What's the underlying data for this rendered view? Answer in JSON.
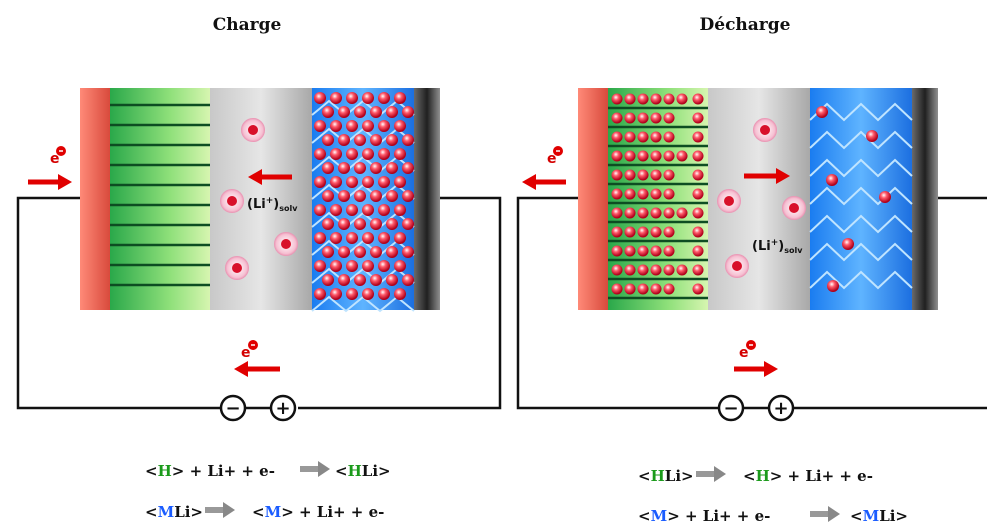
{
  "panels": {
    "charge": {
      "title": "Charge",
      "electron": "e",
      "ion_label": "(Li",
      "ion_sup": "+",
      "ion_paren": ")",
      "ion_sub": "solv",
      "minus": "−",
      "plus": "+",
      "eq1": {
        "a_open": "<",
        "a_H": "H",
        "a_close": ">",
        "a_rest": " + Li+ + e-",
        "b_open": "<",
        "b_H": "H",
        "b_Li": "Li>"
      },
      "eq2": {
        "a_open": "<",
        "a_M": "M",
        "a_close": "Li>",
        "b_open": "<",
        "b_M": "M",
        "b_rest": "> + Li+ + e-"
      }
    },
    "discharge": {
      "title": "Décharge",
      "electron": "e",
      "ion_label": "(Li",
      "ion_sup": "+",
      "ion_paren": ")",
      "ion_sub": "solv",
      "minus": "−",
      "plus": "+",
      "eq1": {
        "a_open": "<",
        "a_H": "H",
        "a_close": "Li>",
        "b_open": "<",
        "b_H": "H",
        "b_rest": "> + Li+ + e-"
      },
      "eq2": {
        "a_open": "<",
        "a_M": "M",
        "a_close": "> + Li+ + e-",
        "b_open": "<",
        "b_M": "M",
        "b_Li": "Li>"
      }
    }
  },
  "colors": {
    "electron_arrow": "#e00000",
    "ion_fill": "#f4b6c8",
    "ion_core": "#d8102a",
    "negative_electrode": "#2aa84a",
    "positive_electrode": "#1a5cff",
    "current_collector": "#e86a5a"
  }
}
